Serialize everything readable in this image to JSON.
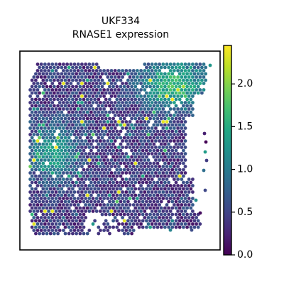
{
  "chart_data": {
    "type": "scatter",
    "title": "UKF334",
    "subtitle": "RNASE1 expression",
    "xlabel": "",
    "ylabel": "",
    "colorbar": {
      "label": "",
      "range": [
        0.0,
        2.45
      ],
      "ticks": [
        0.0,
        0.5,
        1.0,
        1.5,
        2.0
      ],
      "tick_labels": [
        "0.0",
        "0.5",
        "1.0",
        "1.5",
        "2.0"
      ],
      "colormap": "viridis"
    },
    "axes_visible": false,
    "grid": false,
    "legend": "colorbar-right",
    "description": "",
    "point_color_low": "#440154",
    "point_color_high": "#fde725"
  }
}
